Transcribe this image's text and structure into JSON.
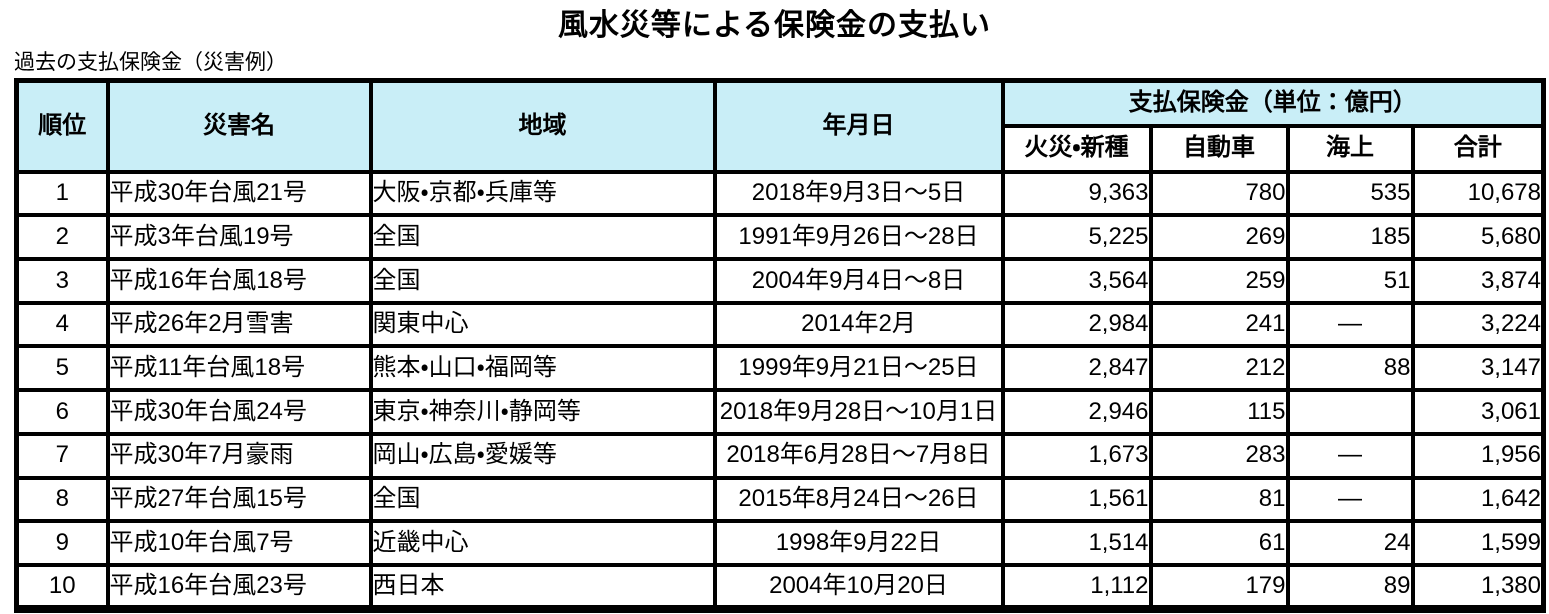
{
  "page": {
    "title": "風水災等による保険金の支払い",
    "subtitle": "過去の支払保険金（災害例）"
  },
  "colors": {
    "header_bg": "#c9eef7",
    "border": "#000000"
  },
  "table": {
    "header": {
      "rank": "順位",
      "disaster": "災害名",
      "region": "地域",
      "date": "年月日",
      "payment_group": "支払保険金（単位：億円）",
      "sub_columns": [
        "火災・新種",
        "自動車",
        "海上",
        "合計"
      ]
    },
    "rows": [
      {
        "rank": "1",
        "disaster": "平成30年台風21号",
        "region": "大阪・京都・兵庫等",
        "date": "2018年9月3日～5日",
        "fire": "9,363",
        "auto": "780",
        "marine": "535",
        "total": "10,678"
      },
      {
        "rank": "2",
        "disaster": "平成3年台風19号",
        "region": "全国",
        "date": "1991年9月26日～28日",
        "fire": "5,225",
        "auto": "269",
        "marine": "185",
        "total": "5,680"
      },
      {
        "rank": "3",
        "disaster": "平成16年台風18号",
        "region": "全国",
        "date": "2004年9月4日～8日",
        "fire": "3,564",
        "auto": "259",
        "marine": "51",
        "total": "3,874"
      },
      {
        "rank": "4",
        "disaster": "平成26年2月雪害",
        "region": "関東中心",
        "date": "2014年2月",
        "fire": "2,984",
        "auto": "241",
        "marine": "—",
        "total": "3,224"
      },
      {
        "rank": "5",
        "disaster": "平成11年台風18号",
        "region": "熊本・山口・福岡等",
        "date": "1999年9月21日～25日",
        "fire": "2,847",
        "auto": "212",
        "marine": "88",
        "total": "3,147"
      },
      {
        "rank": "6",
        "disaster": "平成30年台風24号",
        "region": "東京・神奈川・静岡等",
        "date": "2018年9月28日～10月1日",
        "fire": "2,946",
        "auto": "115",
        "marine": "",
        "total": "3,061"
      },
      {
        "rank": "7",
        "disaster": "平成30年7月豪雨",
        "region": "岡山・広島・愛媛等",
        "date": "2018年6月28日～7月8日",
        "fire": "1,673",
        "auto": "283",
        "marine": "—",
        "total": "1,956"
      },
      {
        "rank": "8",
        "disaster": "平成27年台風15号",
        "region": "全国",
        "date": "2015年8月24日～26日",
        "fire": "1,561",
        "auto": "81",
        "marine": "—",
        "total": "1,642"
      },
      {
        "rank": "9",
        "disaster": "平成10年台風7号",
        "region": "近畿中心",
        "date": "1998年9月22日",
        "fire": "1,514",
        "auto": "61",
        "marine": "24",
        "total": "1,599"
      },
      {
        "rank": "10",
        "disaster": "平成16年台風23号",
        "region": "西日本",
        "date": "2004年10月20日",
        "fire": "1,112",
        "auto": "179",
        "marine": "89",
        "total": "1,380"
      }
    ]
  }
}
